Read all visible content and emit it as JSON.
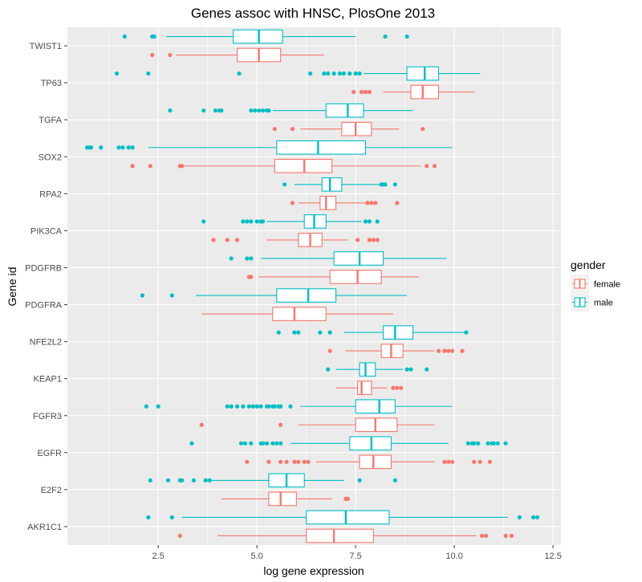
{
  "chart_data": {
    "type": "boxplot",
    "orientation": "horizontal",
    "title": "Genes assoc with HNSC, PlosOne 2013",
    "xlabel": "log gene expression",
    "ylabel": "Gene id",
    "xlim": [
      0.2,
      12.7
    ],
    "xticks": [
      2.5,
      5.0,
      7.5,
      10.0,
      12.5
    ],
    "xtick_labels": [
      "2.5",
      "5.0",
      "7.5",
      "10.0",
      "12.5"
    ],
    "grid": true,
    "legend": {
      "title": "gender",
      "position": "right",
      "entries": [
        {
          "label": "female",
          "color": "#F8766D"
        },
        {
          "label": "male",
          "color": "#00BFC4"
        }
      ]
    },
    "colors": {
      "female": "#F8766D",
      "male": "#00BFC4",
      "panel": "#EBEBEB"
    },
    "categories": [
      "TWIST1",
      "TP63",
      "TGFA",
      "SOX2",
      "RPA2",
      "PIK3CA",
      "PDGFRB",
      "PDGFRA",
      "NFE2L2",
      "KEAP1",
      "FGFR3",
      "EGFR",
      "E2F2",
      "AKR1C1"
    ],
    "series": [
      {
        "name": "male",
        "boxes": [
          {
            "gene": "TWIST1",
            "whisker_low": 2.7,
            "q1": 4.4,
            "median": 5.05,
            "q3": 5.65,
            "whisker_high": 7.5,
            "outliers": [
              1.65,
              2.35,
              2.4,
              8.25,
              8.8
            ]
          },
          {
            "gene": "TP63",
            "whisker_low": 7.7,
            "q1": 8.8,
            "median": 9.25,
            "q3": 9.6,
            "whisker_high": 10.65,
            "outliers": [
              1.45,
              2.25,
              4.55,
              6.35,
              6.7,
              6.8,
              6.95,
              7.1,
              7.2,
              7.35,
              7.5,
              7.6
            ]
          },
          {
            "gene": "TGFA",
            "whisker_low": 5.4,
            "q1": 6.75,
            "median": 7.3,
            "q3": 7.7,
            "whisker_high": 8.95,
            "outliers": [
              2.8,
              3.65,
              3.95,
              4.05,
              4.1,
              4.85,
              4.95,
              5.05,
              5.15,
              5.25,
              5.3
            ]
          },
          {
            "gene": "SOX2",
            "whisker_low": 2.25,
            "q1": 5.5,
            "median": 6.55,
            "q3": 7.75,
            "whisker_high": 9.95,
            "outliers": [
              0.7,
              0.75,
              0.8,
              1.05,
              1.5,
              1.6,
              1.75,
              1.85
            ]
          },
          {
            "gene": "RPA2",
            "whisker_low": 5.95,
            "q1": 6.65,
            "median": 6.85,
            "q3": 7.15,
            "whisker_high": 8.1,
            "outliers": [
              5.7,
              8.15,
              8.2,
              8.25,
              8.5
            ]
          },
          {
            "gene": "PIK3CA",
            "whisker_low": 5.25,
            "q1": 6.2,
            "median": 6.45,
            "q3": 6.75,
            "whisker_high": 7.65,
            "outliers": [
              3.65,
              4.65,
              4.75,
              4.85,
              5.0,
              5.1,
              5.15,
              7.75,
              7.85,
              8.05
            ]
          },
          {
            "gene": "PDGFRB",
            "whisker_low": 5.1,
            "q1": 6.95,
            "median": 7.6,
            "q3": 8.2,
            "whisker_high": 9.8,
            "outliers": [
              4.35,
              4.75,
              4.85
            ]
          },
          {
            "gene": "PDGFRA",
            "whisker_low": 3.45,
            "q1": 5.5,
            "median": 6.3,
            "q3": 7.0,
            "whisker_high": 8.8,
            "outliers": [
              2.1,
              2.85
            ]
          },
          {
            "gene": "NFE2L2",
            "whisker_low": 7.2,
            "q1": 8.2,
            "median": 8.5,
            "q3": 8.95,
            "whisker_high": 10.25,
            "outliers": [
              5.55,
              5.95,
              6.05,
              6.6,
              6.85,
              10.3
            ]
          },
          {
            "gene": "KEAP1",
            "whisker_low": 7.0,
            "q1": 7.6,
            "median": 7.75,
            "q3": 8.0,
            "whisker_high": 8.7,
            "outliers": [
              6.8,
              8.8,
              8.9,
              9.3
            ]
          },
          {
            "gene": "FGFR3",
            "whisker_low": 6.1,
            "q1": 7.5,
            "median": 8.1,
            "q3": 8.5,
            "whisker_high": 9.95,
            "outliers": [
              2.2,
              2.5,
              4.25,
              4.35,
              4.5,
              4.65,
              4.8,
              4.9,
              5.0,
              5.1,
              5.25,
              5.3,
              5.4,
              5.45,
              5.55,
              5.6,
              5.85
            ]
          },
          {
            "gene": "EGFR",
            "whisker_low": 5.85,
            "q1": 7.35,
            "median": 7.9,
            "q3": 8.4,
            "whisker_high": 9.85,
            "outliers": [
              3.35,
              4.6,
              4.7,
              4.85,
              5.1,
              5.15,
              5.25,
              5.4,
              5.5,
              5.6,
              10.35,
              10.45,
              10.5,
              10.6,
              10.85,
              10.95,
              11.0,
              11.1,
              11.3
            ]
          },
          {
            "gene": "E2F2",
            "whisker_low": 3.85,
            "q1": 5.3,
            "median": 5.75,
            "q3": 6.2,
            "whisker_high": 7.2,
            "outliers": [
              2.3,
              2.75,
              3.05,
              3.1,
              3.4,
              3.7,
              3.8,
              7.6,
              8.5
            ]
          },
          {
            "gene": "AKR1C1",
            "whisker_low": 3.1,
            "q1": 6.25,
            "median": 7.25,
            "q3": 8.35,
            "whisker_high": 11.35,
            "outliers": [
              2.25,
              2.85,
              11.65,
              12.0,
              12.1
            ]
          }
        ]
      },
      {
        "name": "female",
        "boxes": [
          {
            "gene": "TWIST1",
            "whisker_low": 2.95,
            "q1": 4.5,
            "median": 5.05,
            "q3": 5.6,
            "whisker_high": 6.7,
            "outliers": [
              2.35,
              2.8
            ]
          },
          {
            "gene": "TP63",
            "whisker_low": 8.2,
            "q1": 8.9,
            "median": 9.2,
            "q3": 9.6,
            "whisker_high": 10.5,
            "outliers": [
              7.45,
              7.65,
              7.75,
              7.85
            ]
          },
          {
            "gene": "TGFA",
            "whisker_low": 6.1,
            "q1": 7.15,
            "median": 7.5,
            "q3": 7.9,
            "whisker_high": 8.6,
            "outliers": [
              5.45,
              5.9,
              9.2
            ]
          },
          {
            "gene": "SOX2",
            "whisker_low": 3.1,
            "q1": 5.45,
            "median": 6.2,
            "q3": 6.9,
            "whisker_high": 9.15,
            "outliers": [
              1.85,
              2.3,
              3.05,
              3.1,
              9.3,
              9.5
            ]
          },
          {
            "gene": "RPA2",
            "whisker_low": 6.05,
            "q1": 6.6,
            "median": 6.75,
            "q3": 7.0,
            "whisker_high": 7.75,
            "outliers": [
              5.9,
              7.8,
              7.9,
              8.0,
              8.55
            ]
          },
          {
            "gene": "PIK3CA",
            "whisker_low": 5.25,
            "q1": 6.05,
            "median": 6.35,
            "q3": 6.65,
            "whisker_high": 7.3,
            "outliers": [
              3.9,
              4.25,
              4.5,
              7.55,
              7.85,
              7.95,
              8.05
            ]
          },
          {
            "gene": "PDGFRB",
            "whisker_low": 5.05,
            "q1": 6.85,
            "median": 7.55,
            "q3": 8.15,
            "whisker_high": 9.1,
            "outliers": [
              4.8,
              4.85
            ]
          },
          {
            "gene": "PDGFRA",
            "whisker_low": 3.6,
            "q1": 5.4,
            "median": 5.95,
            "q3": 6.75,
            "whisker_high": 8.45,
            "outliers": []
          },
          {
            "gene": "NFE2L2",
            "whisker_low": 7.25,
            "q1": 8.15,
            "median": 8.4,
            "q3": 8.7,
            "whisker_high": 9.5,
            "outliers": [
              6.85,
              9.6,
              9.75,
              9.85,
              9.95,
              10.2
            ]
          },
          {
            "gene": "KEAP1",
            "whisker_low": 7.0,
            "q1": 7.55,
            "median": 7.65,
            "q3": 7.9,
            "whisker_high": 8.3,
            "outliers": [
              8.45,
              8.55,
              8.65
            ]
          },
          {
            "gene": "FGFR3",
            "whisker_low": 6.05,
            "q1": 7.5,
            "median": 8.0,
            "q3": 8.55,
            "whisker_high": 9.5,
            "outliers": [
              3.6,
              5.6
            ]
          },
          {
            "gene": "EGFR",
            "whisker_low": 6.5,
            "q1": 7.6,
            "median": 7.95,
            "q3": 8.4,
            "whisker_high": 9.5,
            "outliers": [
              4.75,
              5.3,
              5.6,
              5.75,
              5.95,
              6.05,
              6.2,
              6.3,
              9.75,
              9.85,
              9.95,
              10.5,
              10.65,
              10.9
            ]
          },
          {
            "gene": "E2F2",
            "whisker_low": 4.1,
            "q1": 5.3,
            "median": 5.6,
            "q3": 6.0,
            "whisker_high": 6.9,
            "outliers": [
              7.25,
              7.3
            ]
          },
          {
            "gene": "AKR1C1",
            "whisker_low": 4.0,
            "q1": 6.25,
            "median": 6.95,
            "q3": 7.95,
            "whisker_high": 10.55,
            "outliers": [
              3.05,
              10.7,
              10.8,
              11.3,
              11.45
            ]
          }
        ]
      }
    ]
  }
}
